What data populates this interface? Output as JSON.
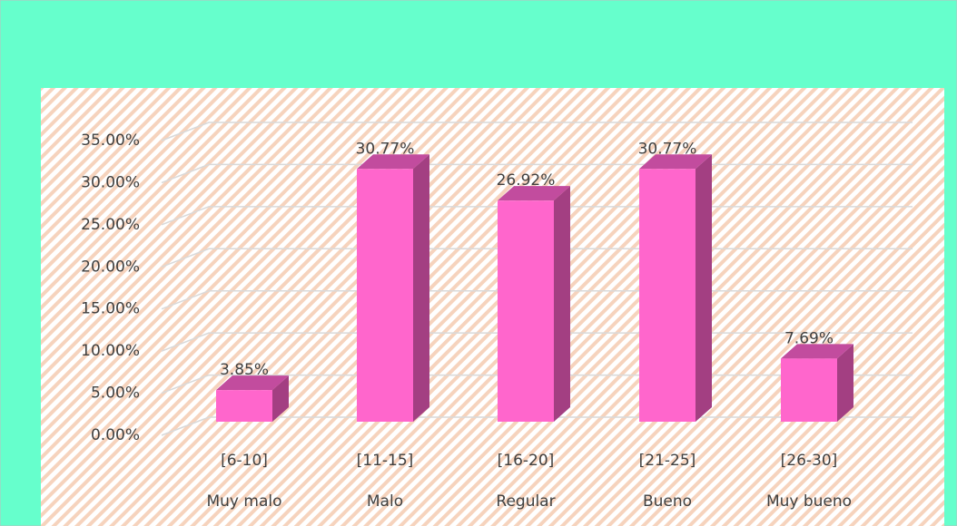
{
  "chart_data": {
    "type": "bar3d",
    "categories": [
      [
        "[6-10]",
        "Muy malo"
      ],
      [
        "[11-15]",
        "Malo"
      ],
      [
        "[16-20]",
        "Regular"
      ],
      [
        "[21-25]",
        "Bueno"
      ],
      [
        "[26-30]",
        "Muy bueno"
      ]
    ],
    "values": [
      3.85,
      30.77,
      26.92,
      30.77,
      7.69
    ],
    "value_labels": [
      "3.85%",
      "30.77%",
      "26.92%",
      "30.77%",
      "7.69%"
    ],
    "color": "#ff66cc",
    "ylim": [
      0,
      35
    ],
    "yticks": [
      {
        "value": 0,
        "label": "0.00%"
      },
      {
        "value": 5,
        "label": "5.00%"
      },
      {
        "value": 10,
        "label": "10.00%"
      },
      {
        "value": 15,
        "label": "15.00%"
      },
      {
        "value": 20,
        "label": "20.00%"
      },
      {
        "value": 25,
        "label": "25.00%"
      },
      {
        "value": 30,
        "label": "30.00%"
      },
      {
        "value": 35,
        "label": "35.00%"
      }
    ],
    "grid": true
  }
}
